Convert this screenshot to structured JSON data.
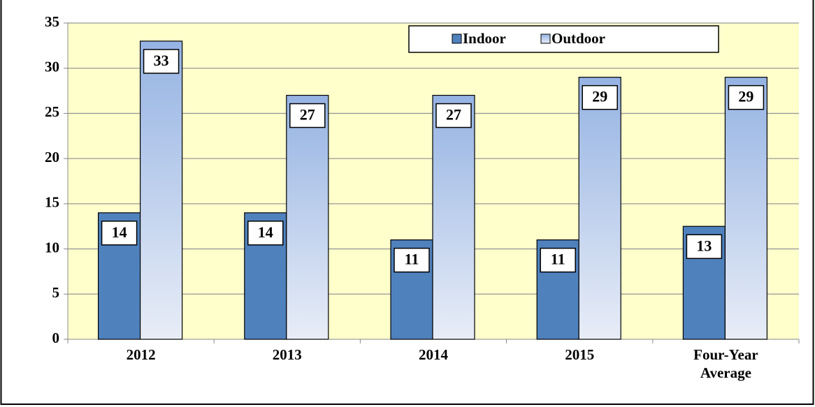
{
  "chart_data": {
    "type": "bar",
    "categories": [
      "2012",
      "2013",
      "2014",
      "2015",
      "Four-Year Average"
    ],
    "series": [
      {
        "name": "Indoor",
        "color": "#4f81bd",
        "values": [
          14,
          14,
          11,
          11,
          12.5
        ],
        "value_labels": [
          "14",
          "14",
          "11",
          "11",
          "13"
        ]
      },
      {
        "name": "Outdoor",
        "color": "#a7bfe6",
        "values": [
          33,
          27,
          27,
          29,
          29
        ],
        "value_labels": [
          "33",
          "27",
          "27",
          "29",
          "29"
        ]
      }
    ],
    "ylim": [
      0,
      35
    ],
    "yticks": [
      0,
      5,
      10,
      15,
      20,
      25,
      30,
      35
    ],
    "grid": true,
    "legend": "top-right"
  }
}
